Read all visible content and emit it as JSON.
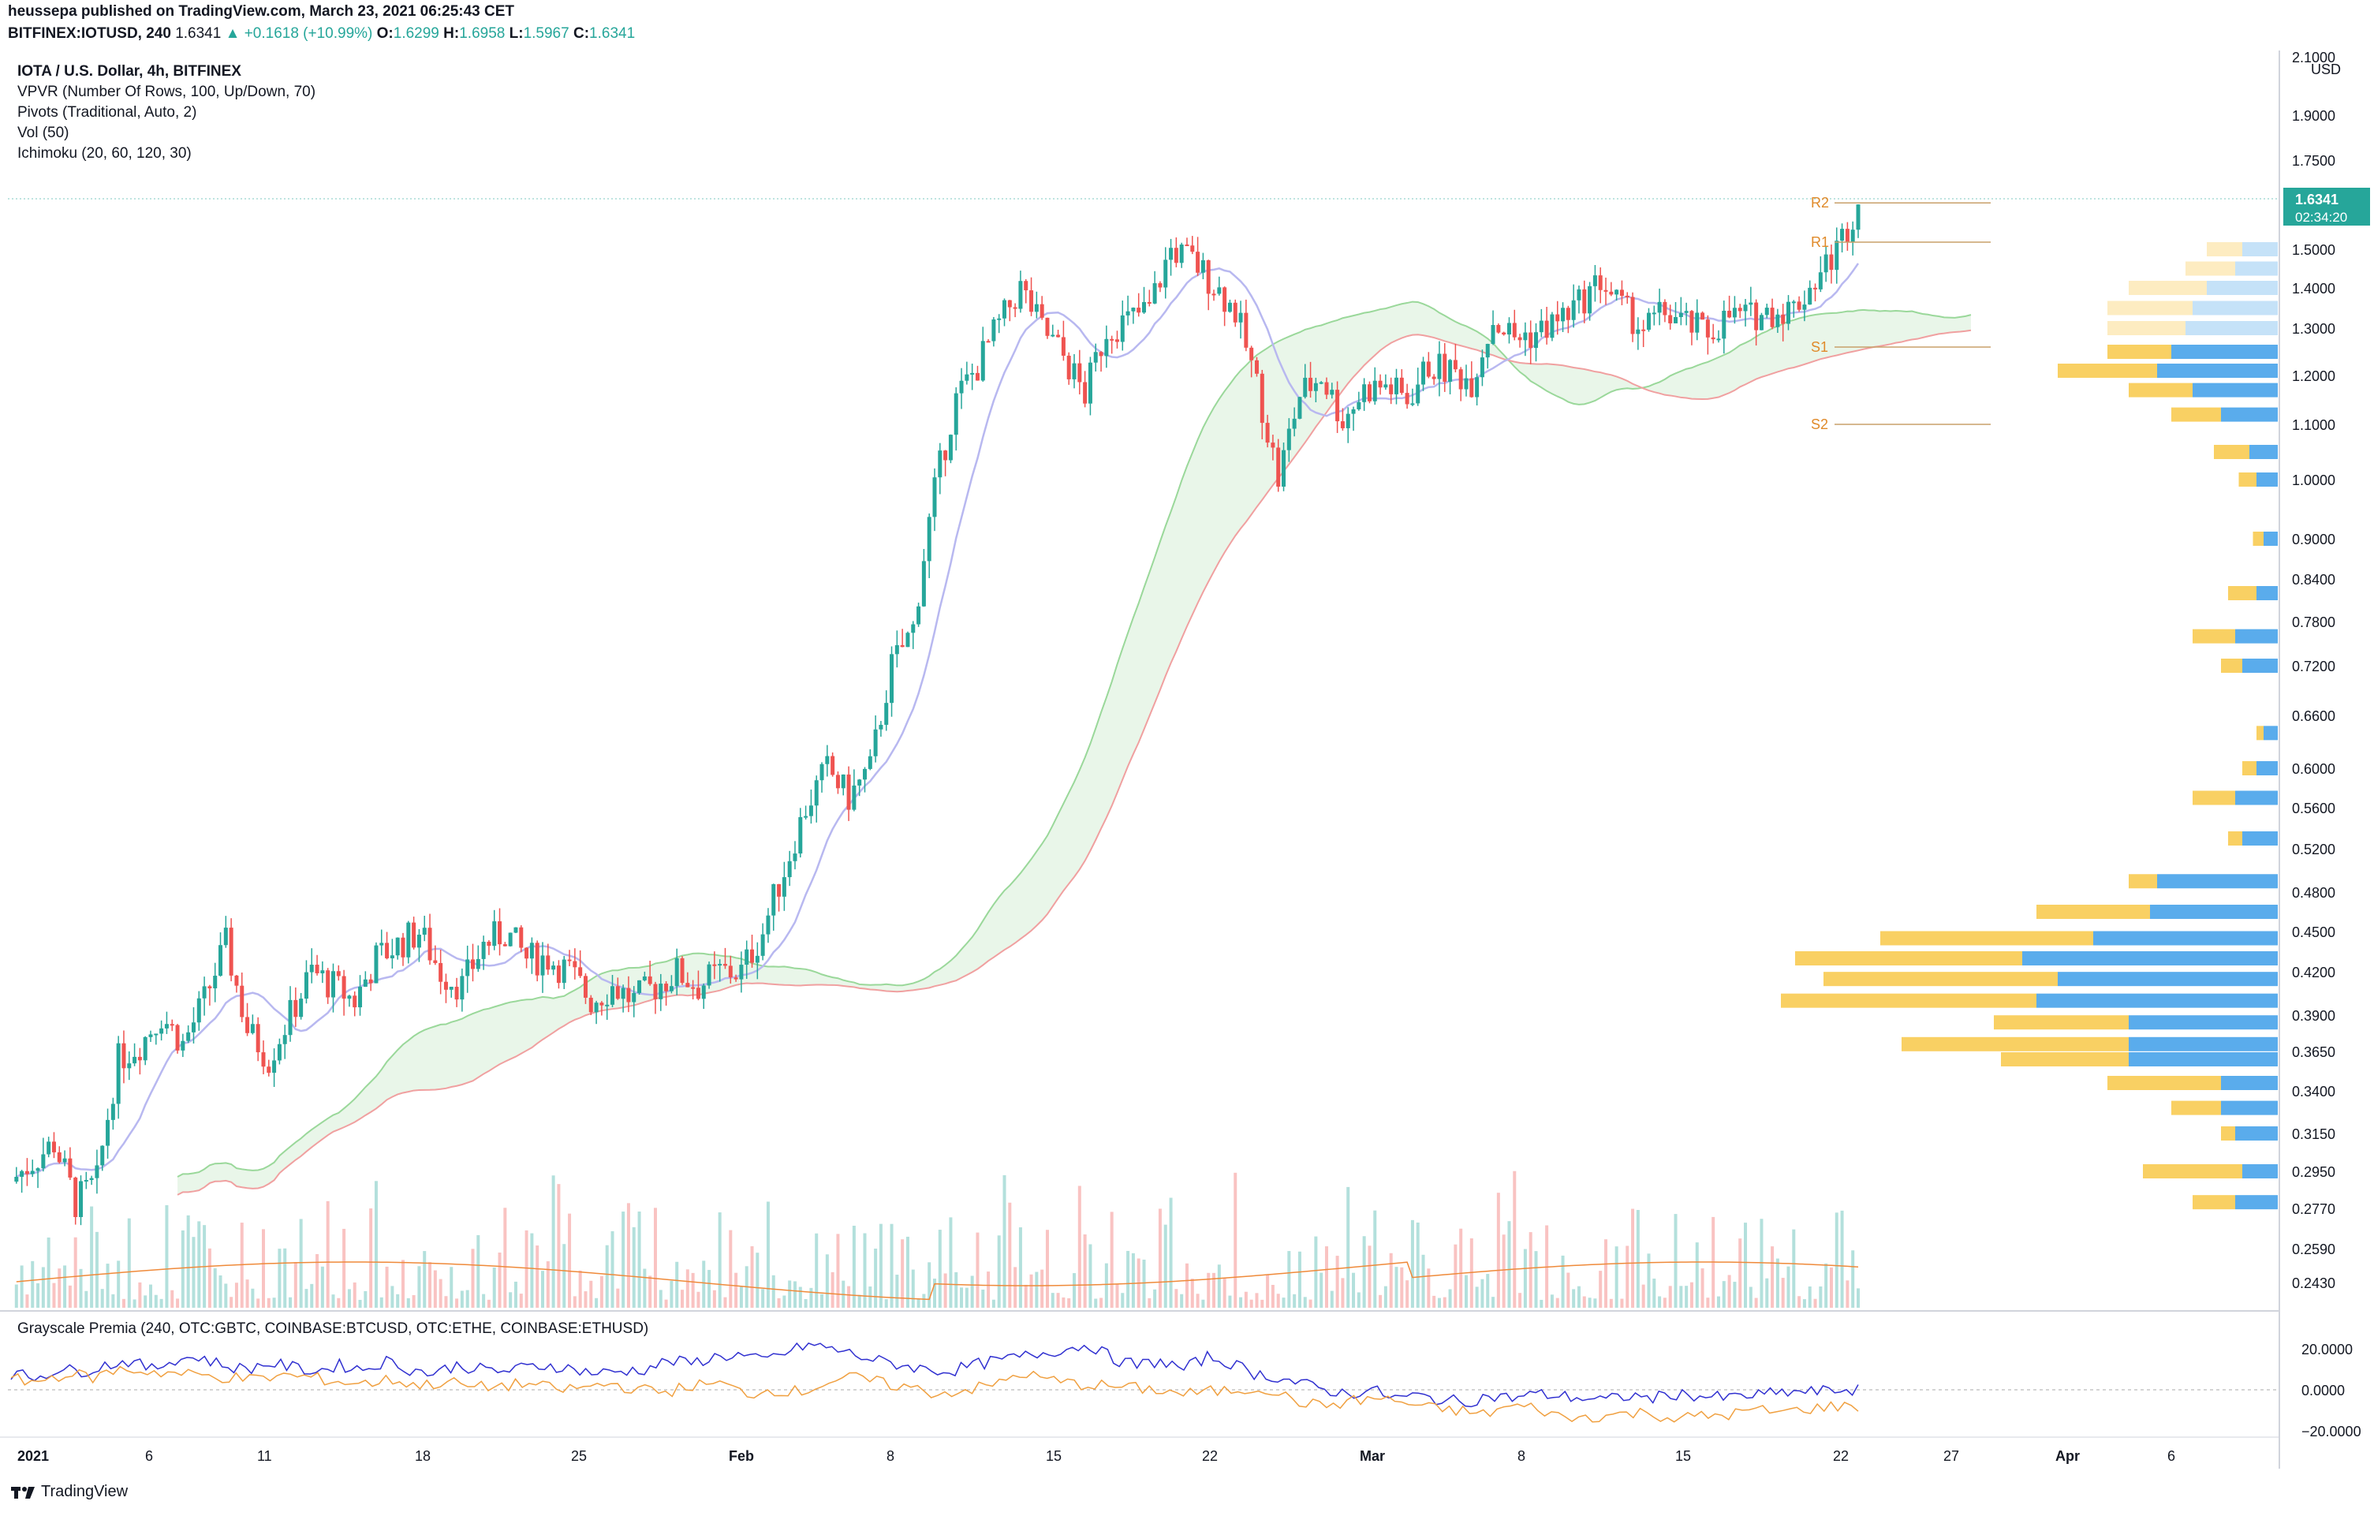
{
  "header": {
    "publisher_line": "heussepa published on TradingView.com, March 23, 2021 06:25:43 CET",
    "symbol_line_prefix": "BITFINEX:IOTUSD, 240",
    "last": "1.6341",
    "change": "▲ +0.1618 (+10.99%)",
    "o_label": "O:",
    "o": "1.6299",
    "h_label": "H:",
    "h": "1.6958",
    "l_label": "L:",
    "l": "1.5967",
    "c_label": "C:",
    "c": "1.6341"
  },
  "legend": {
    "symbol": "IOTA / U.S. Dollar, 4h, BITFINEX",
    "vpvr": "VPVR (Number Of Rows, 100, Up/Down, 70)",
    "pivots": "Pivots (Traditional, Auto, 2)",
    "vol": "Vol (50)",
    "ichimoku": "Ichimoku (20, 60, 120, 30)"
  },
  "premia": {
    "title": "Grayscale Premia (240, OTC:GBTC, COINBASE:BTCUSD, OTC:ETHE, COINBASE:ETHUSD)"
  },
  "footer": {
    "brand": "TradingView"
  },
  "colors": {
    "up": "#26a69a",
    "down": "#ef5350",
    "tenkan": "#b8b8f0",
    "span_a": "#9ad89a",
    "span_b": "#f0a0a0",
    "vol_ma": "#ef8a3a",
    "vpvr_up": "#5aacec",
    "vpvr_down": "#f9d063",
    "pivot": "#c8a06a",
    "premia_btc": "#3030d0",
    "premia_eth": "#f0a040",
    "last_price": "#26a69a"
  },
  "chart_data": {
    "type": "candlestick",
    "price_axis": {
      "unit": "USD",
      "ticks": [
        "2.1000",
        "1.9000",
        "1.7500",
        "1.5000",
        "1.4000",
        "1.3000",
        "1.2000",
        "1.1000",
        "1.0000",
        "0.9000",
        "0.8400",
        "0.7800",
        "0.7200",
        "0.6600",
        "0.6000",
        "0.5600",
        "0.5200",
        "0.4800",
        "0.4500",
        "0.4200",
        "0.3900",
        "0.3650",
        "0.3400",
        "0.3150",
        "0.2950",
        "0.2770",
        "0.2590",
        "0.2430"
      ],
      "last_price_label": "1.6341",
      "countdown_label": "02:34:20"
    },
    "time_axis": {
      "labels": [
        "2021",
        "6",
        "11",
        "18",
        "25",
        "Feb",
        "8",
        "15",
        "22",
        "Mar",
        "8",
        "15",
        "22",
        "27",
        "Apr",
        "6"
      ]
    },
    "pivots": [
      {
        "label": "R2",
        "value": 1.63
      },
      {
        "label": "R1",
        "value": 1.52
      },
      {
        "label": "S1",
        "value": 1.26
      },
      {
        "label": "S2",
        "value": 1.1
      }
    ],
    "close_series": [
      0.29,
      0.3,
      0.31,
      0.28,
      0.29,
      0.36,
      0.37,
      0.39,
      0.37,
      0.4,
      0.44,
      0.38,
      0.36,
      0.39,
      0.42,
      0.41,
      0.4,
      0.43,
      0.44,
      0.45,
      0.42,
      0.41,
      0.44,
      0.45,
      0.43,
      0.43,
      0.42,
      0.4,
      0.41,
      0.4,
      0.41,
      0.42,
      0.41,
      0.42,
      0.42,
      0.45,
      0.5,
      0.56,
      0.6,
      0.57,
      0.6,
      0.72,
      0.77,
      0.98,
      1.15,
      1.22,
      1.31,
      1.4,
      1.3,
      1.24,
      1.16,
      1.3,
      1.32,
      1.35,
      1.5,
      1.47,
      1.41,
      1.34,
      1.18,
      1.0,
      1.16,
      1.2,
      1.11,
      1.17,
      1.18,
      1.15,
      1.22,
      1.21,
      1.19,
      1.32,
      1.28,
      1.29,
      1.32,
      1.36,
      1.42,
      1.35,
      1.3,
      1.34,
      1.31,
      1.29,
      1.33,
      1.33,
      1.34,
      1.35,
      1.42,
      1.5,
      1.63
    ],
    "volume_axis_note": "",
    "vpvr_rows": [
      {
        "price": 1.5,
        "up": 50,
        "down": 50
      },
      {
        "price": 1.45,
        "up": 60,
        "down": 70
      },
      {
        "price": 1.4,
        "up": 100,
        "down": 110
      },
      {
        "price": 1.35,
        "up": 120,
        "down": 120
      },
      {
        "price": 1.3,
        "up": 130,
        "down": 110
      },
      {
        "price": 1.25,
        "up": 150,
        "down": 90
      },
      {
        "price": 1.21,
        "up": 170,
        "down": 140
      },
      {
        "price": 1.17,
        "up": 120,
        "down": 90
      },
      {
        "price": 1.12,
        "up": 80,
        "down": 70
      },
      {
        "price": 1.05,
        "up": 40,
        "down": 50
      },
      {
        "price": 1.0,
        "up": 30,
        "down": 25
      },
      {
        "price": 0.9,
        "up": 20,
        "down": 15
      },
      {
        "price": 0.82,
        "up": 30,
        "down": 40
      },
      {
        "price": 0.76,
        "up": 60,
        "down": 60
      },
      {
        "price": 0.72,
        "up": 50,
        "down": 30
      },
      {
        "price": 0.64,
        "up": 20,
        "down": 10
      },
      {
        "price": 0.6,
        "up": 30,
        "down": 20
      },
      {
        "price": 0.57,
        "up": 60,
        "down": 60
      },
      {
        "price": 0.53,
        "up": 50,
        "down": 20
      },
      {
        "price": 0.49,
        "up": 170,
        "down": 40
      },
      {
        "price": 0.465,
        "up": 180,
        "down": 160
      },
      {
        "price": 0.445,
        "up": 260,
        "down": 300
      },
      {
        "price": 0.43,
        "up": 360,
        "down": 320
      },
      {
        "price": 0.415,
        "up": 310,
        "down": 330
      },
      {
        "price": 0.4,
        "up": 340,
        "down": 360
      },
      {
        "price": 0.385,
        "up": 210,
        "down": 190
      },
      {
        "price": 0.37,
        "up": 210,
        "down": 320
      },
      {
        "price": 0.36,
        "up": 210,
        "down": 180
      },
      {
        "price": 0.345,
        "up": 80,
        "down": 160
      },
      {
        "price": 0.33,
        "up": 80,
        "down": 70
      },
      {
        "price": 0.315,
        "up": 60,
        "down": 20
      },
      {
        "price": 0.295,
        "up": 50,
        "down": 140
      },
      {
        "price": 0.28,
        "up": 60,
        "down": 60
      }
    ],
    "premia_axis": {
      "ticks": [
        "20.0000",
        "0.0000",
        "−20.0000"
      ]
    },
    "premia_series": [
      {
        "name": "",
        "values": [
          8,
          6,
          10,
          9,
          12,
          14,
          10,
          15,
          16,
          12,
          10,
          13,
          11,
          9,
          12,
          10,
          14,
          10,
          8,
          12,
          10,
          9,
          11,
          12,
          10,
          8,
          9,
          10,
          14,
          13,
          16,
          17,
          14,
          18,
          22,
          20,
          17,
          14,
          12,
          10,
          9,
          12,
          14,
          16,
          18,
          20,
          22,
          15,
          12,
          14,
          10,
          16,
          13,
          8,
          6,
          3,
          0,
          -2,
          0,
          -4,
          -3,
          -5,
          -6,
          -3,
          -4,
          -2,
          -3,
          -4,
          -5,
          -3,
          -4,
          -2,
          -3,
          -4,
          -3,
          -2,
          -1,
          -1,
          0
        ]
      },
      {
        "name": "",
        "values": [
          5,
          4,
          8,
          6,
          10,
          9,
          8,
          7,
          6,
          5,
          7,
          6,
          4,
          3,
          5,
          2,
          4,
          1,
          2,
          3,
          0,
          1,
          3,
          0,
          -1,
          2,
          3,
          -2,
          0,
          -1,
          4,
          6,
          3,
          1,
          -2,
          0,
          2,
          8,
          5,
          3,
          2,
          1,
          0,
          -2,
          -1,
          0,
          1,
          -5,
          -8,
          -6,
          -4,
          -6,
          -9,
          -10,
          -12,
          -8,
          -9,
          -14,
          -13,
          -12,
          -11,
          -14,
          -13,
          -12,
          -10,
          -11,
          -9,
          -8
        ]
      }
    ]
  }
}
